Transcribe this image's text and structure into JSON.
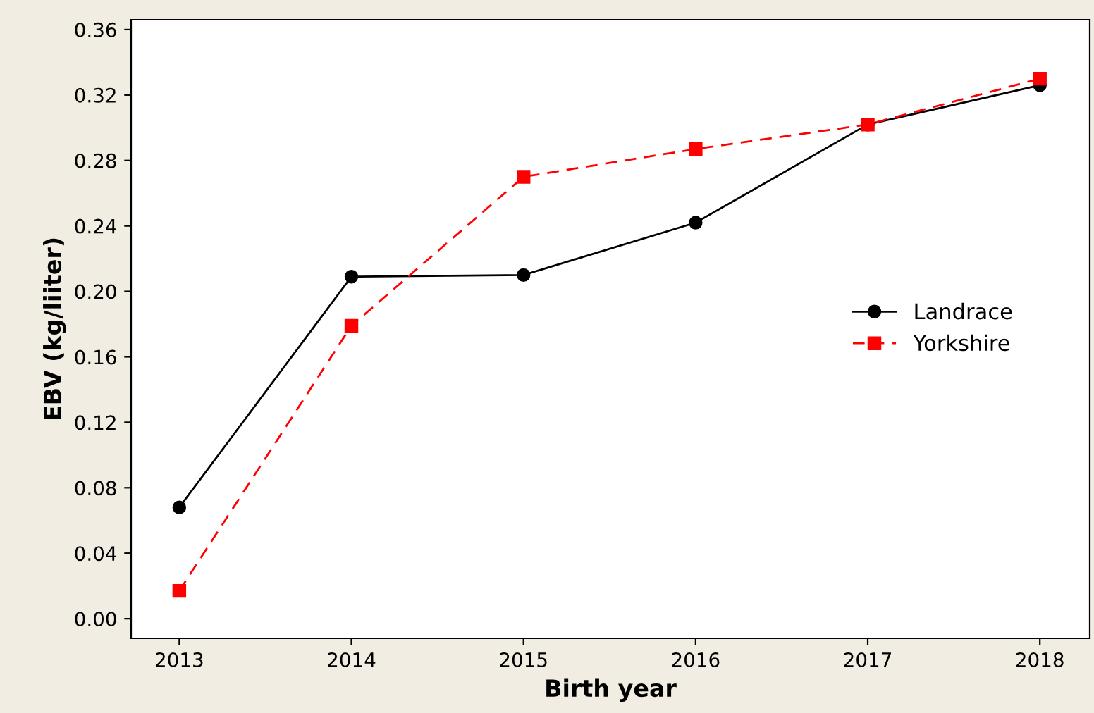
{
  "chart_data": {
    "type": "line",
    "xlabel": "Birth year",
    "ylabel": "EBV (kg/liiter)",
    "categories": [
      "2013",
      "2014",
      "2015",
      "2016",
      "2017",
      "2018"
    ],
    "series": [
      {
        "name": "Landrace",
        "color": "#000000",
        "marker": "circle",
        "line_style": "solid",
        "values": [
          0.068,
          0.209,
          0.21,
          0.242,
          0.302,
          0.326
        ]
      },
      {
        "name": "Yorkshire",
        "color": "#ff0000",
        "marker": "square",
        "line_style": "dashed",
        "values": [
          0.017,
          0.179,
          0.27,
          0.287,
          0.302,
          0.33
        ]
      }
    ],
    "ylim": [
      -0.012,
      0.366
    ],
    "yticks": [
      {
        "value": 0,
        "label": "0.00"
      },
      0.04,
      0.08,
      0.12,
      0.16,
      {
        "value": 0.2,
        "label": "0.20"
      },
      0.24,
      0.28,
      0.32,
      0.36
    ],
    "grid": false,
    "legend": "right"
  }
}
